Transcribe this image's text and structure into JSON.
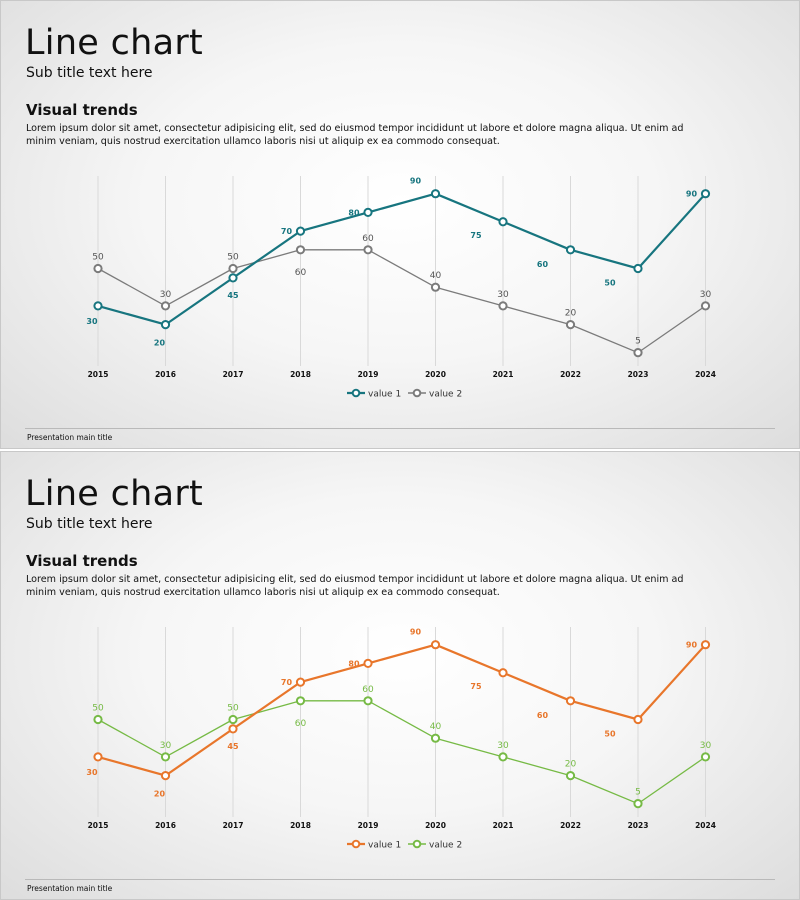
{
  "slides": [
    {
      "title": "Line chart",
      "subtitle": "Sub title text here",
      "heading": "Visual trends",
      "body": "Lorem ipsum dolor sit amet, consectetur adipisicing elit, sed do eiusmod tempor incididunt ut labore et dolore magna aliqua. Ut enim ad minim veniam, quis nostrud exercitation ullamco laboris nisi ut aliquip ex ea commodo consequat.",
      "footer": "Presentation main title"
    },
    {
      "title": "Line chart",
      "subtitle": "Sub title text here",
      "heading": "Visual trends",
      "body": "Lorem ipsum dolor sit amet, consectetur adipisicing elit, sed do eiusmod tempor incididunt ut labore et dolore magna aliqua. Ut enim ad minim veniam, quis nostrud exercitation ullamco laboris nisi ut aliquip ex ea commodo consequat.",
      "footer": "Presentation main title"
    }
  ],
  "chart_data": [
    {
      "type": "line",
      "title": "",
      "xlabel": "",
      "ylabel": "",
      "ylim": [
        0,
        100
      ],
      "grid": "vertical",
      "legend": "bottom-center",
      "categories": [
        "2015",
        "2016",
        "2017",
        "2018",
        "2019",
        "2020",
        "2021",
        "2022",
        "2023",
        "2024"
      ],
      "series": [
        {
          "name": "value 1",
          "color": "#17757f",
          "values": [
            30,
            20,
            45,
            70,
            80,
            90,
            75,
            60,
            50,
            90
          ]
        },
        {
          "name": "value 2",
          "color": "#7b7b7b",
          "values": [
            50,
            30,
            50,
            60,
            60,
            40,
            30,
            20,
            5,
            30
          ]
        }
      ]
    },
    {
      "type": "line",
      "title": "",
      "xlabel": "",
      "ylabel": "",
      "ylim": [
        0,
        100
      ],
      "grid": "vertical",
      "legend": "bottom-center",
      "categories": [
        "2015",
        "2016",
        "2017",
        "2018",
        "2019",
        "2020",
        "2021",
        "2022",
        "2023",
        "2024"
      ],
      "series": [
        {
          "name": "value 1",
          "color": "#e8762b",
          "values": [
            30,
            20,
            45,
            70,
            80,
            90,
            75,
            60,
            50,
            90
          ]
        },
        {
          "name": "value 2",
          "color": "#76ba45",
          "values": [
            50,
            30,
            50,
            60,
            60,
            40,
            30,
            20,
            5,
            30
          ]
        }
      ]
    }
  ]
}
